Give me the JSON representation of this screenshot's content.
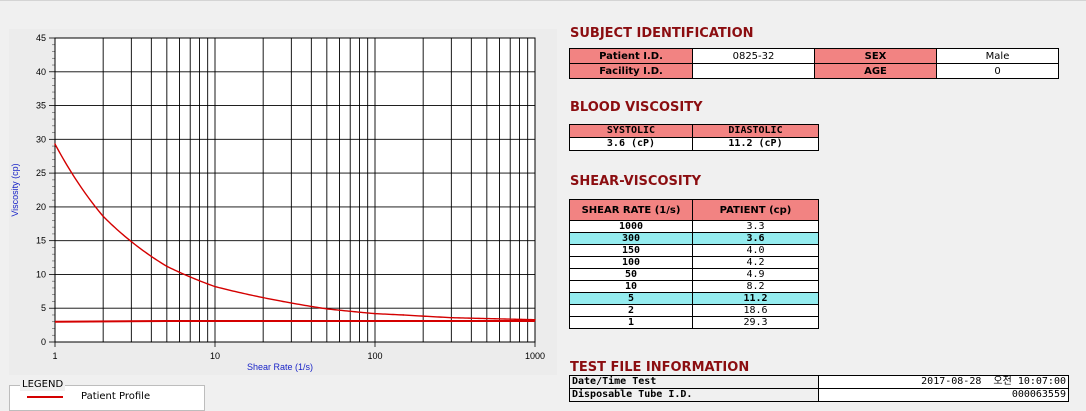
{
  "legend": {
    "title": "LEGEND",
    "entry": "Patient Profile"
  },
  "subject": {
    "title": "SUBJECT IDENTIFICATION",
    "patient_id_label": "Patient I.D.",
    "patient_id": "0825-32",
    "sex_label": "SEX",
    "sex": "Male",
    "facility_id_label": "Facility I.D.",
    "facility_id": "",
    "age_label": "AGE",
    "age": "0"
  },
  "blood": {
    "title": "BLOOD VISCOSITY",
    "systolic_label": "SYSTOLIC",
    "diastolic_label": "DIASTOLIC",
    "systolic": "3.6 (cP)",
    "diastolic": "11.2 (cP)"
  },
  "shear": {
    "title": "SHEAR-VISCOSITY",
    "rate_header": "SHEAR RATE (1/s)",
    "patient_header": "PATIENT (cp)",
    "rows": [
      {
        "rate": "1000",
        "value": "3.3",
        "highlight": false
      },
      {
        "rate": "300",
        "value": "3.6",
        "highlight": true
      },
      {
        "rate": "150",
        "value": "4.0",
        "highlight": false
      },
      {
        "rate": "100",
        "value": "4.2",
        "highlight": false
      },
      {
        "rate": "50",
        "value": "4.9",
        "highlight": false
      },
      {
        "rate": "10",
        "value": "8.2",
        "highlight": false
      },
      {
        "rate": "5",
        "value": "11.2",
        "highlight": true
      },
      {
        "rate": "2",
        "value": "18.6",
        "highlight": false
      },
      {
        "rate": "1",
        "value": "29.3",
        "highlight": false
      }
    ],
    "highlight_color": "#94ecef",
    "header_color": "#f28382"
  },
  "testfile": {
    "title": "TEST FILE INFORMATION",
    "datetime_label": "Date/Time Test",
    "datetime": "2017-08-28  오전 10:07:00",
    "tube_label": "Disposable Tube I.D.",
    "tube": "000063559"
  },
  "chart_data": {
    "type": "line",
    "xscale": "log",
    "xlim": [
      1,
      1000
    ],
    "ylim": [
      0,
      45
    ],
    "xticks": [
      1,
      10,
      100,
      1000
    ],
    "yticks": [
      0,
      5,
      10,
      15,
      20,
      25,
      30,
      35,
      40,
      45
    ],
    "xlabel": "Shear Rate (1/s)",
    "ylabel": "Viscosity (cp)",
    "grid": true,
    "series": [
      {
        "name": "Patient Profile",
        "color": "#d40000",
        "x": [
          1,
          2,
          5,
          10,
          50,
          100,
          150,
          300,
          1000
        ],
        "y": [
          29.3,
          18.6,
          11.2,
          8.2,
          4.9,
          4.2,
          4.0,
          3.6,
          3.3
        ]
      },
      {
        "color": "#d40000",
        "x": [
          1,
          5,
          1000
        ],
        "y": [
          3.0,
          3.1,
          3.1
        ]
      }
    ]
  }
}
